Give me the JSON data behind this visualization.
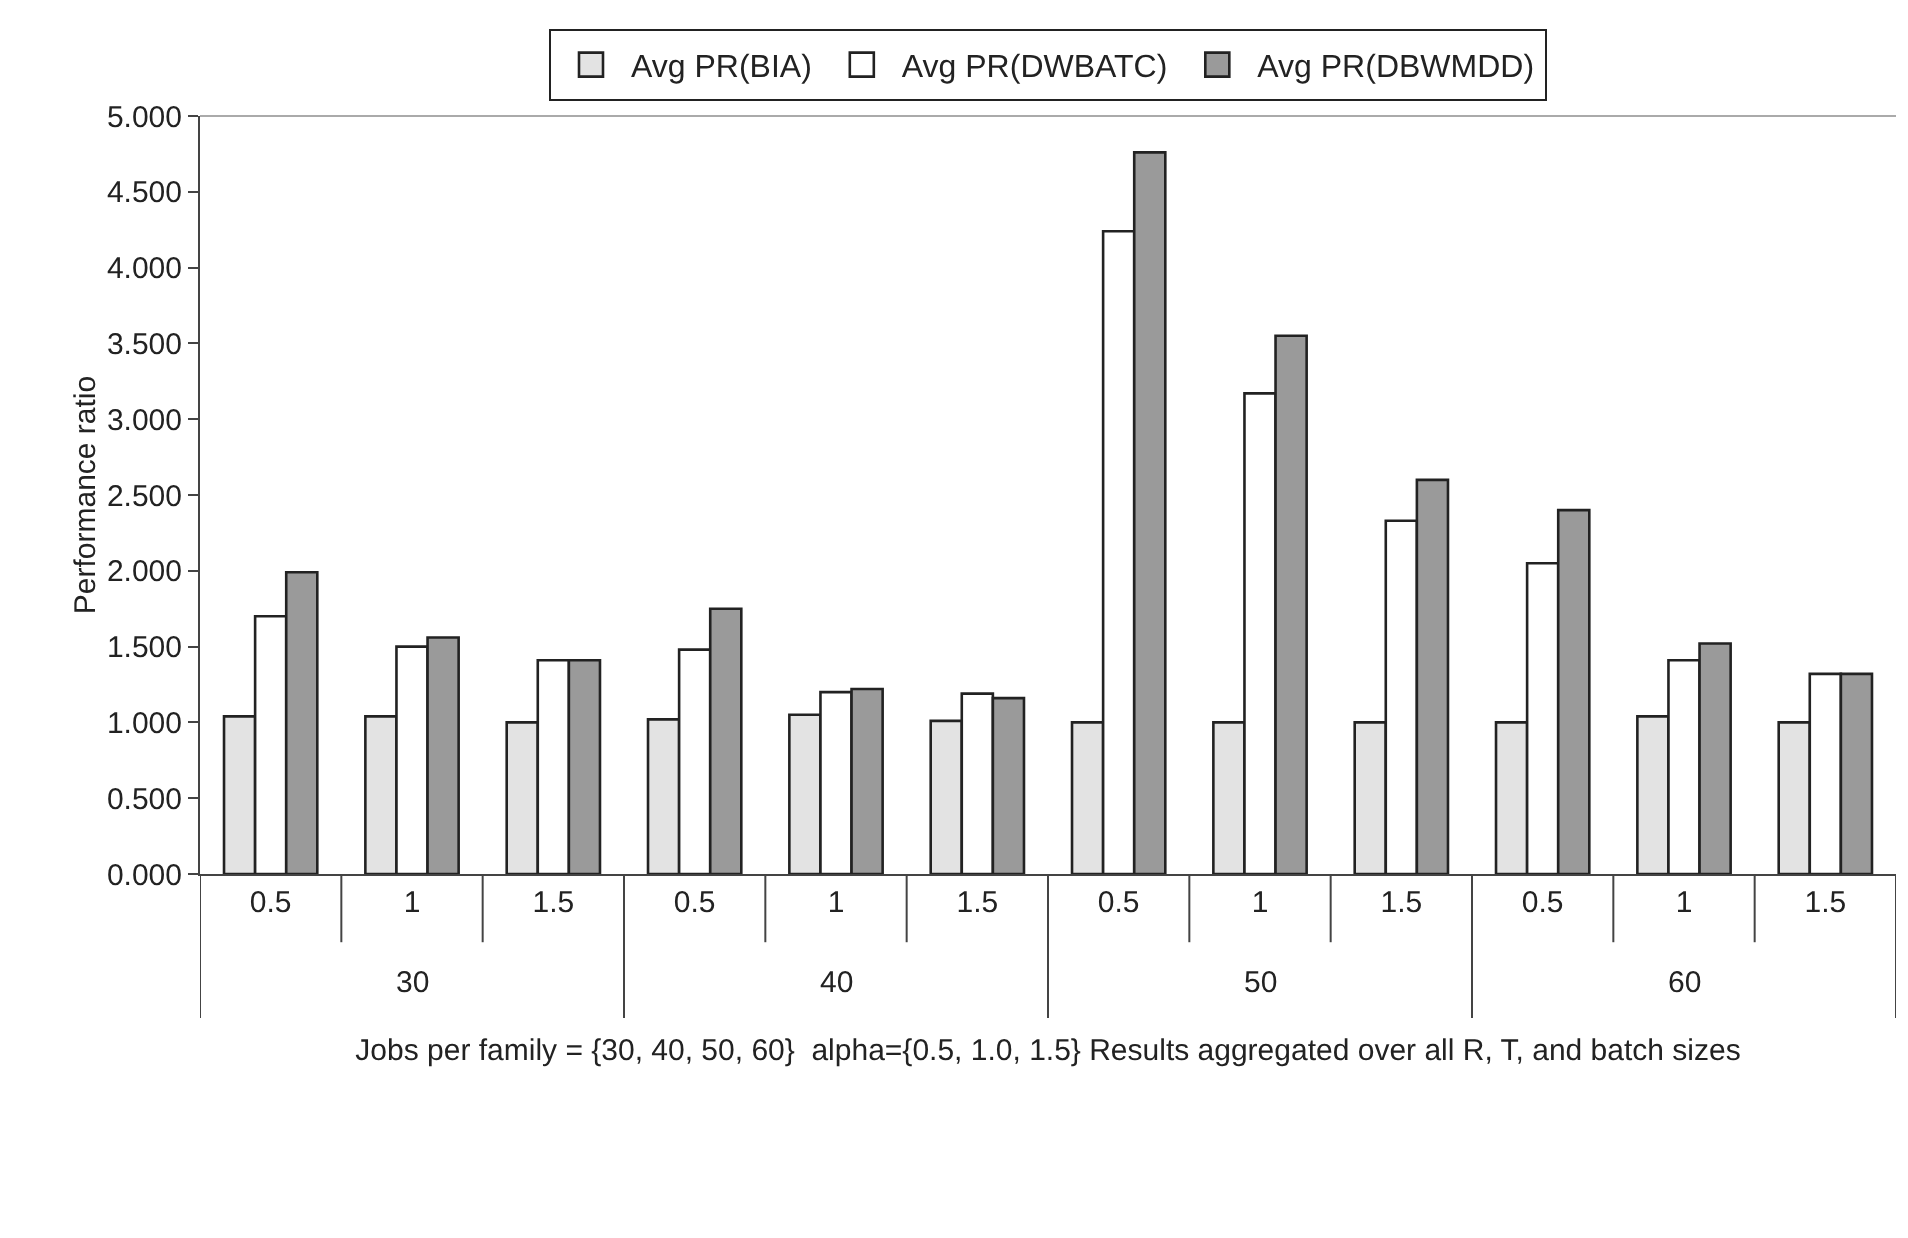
{
  "chart_data": {
    "type": "bar",
    "ylabel": "Performance ratio",
    "xlabel": "Jobs per family = {30, 40, 50, 60}  alpha={0.5, 1.0, 1.5} Results aggregated over all R, T, and batch sizes",
    "categories": [
      "0.5",
      "1",
      "1.5",
      "0.5",
      "1",
      "1.5",
      "0.5",
      "1",
      "1.5",
      "0.5",
      "1",
      "1.5"
    ],
    "annotations": [
      "30",
      "40",
      "50",
      "60"
    ],
    "series": [
      {
        "name": "Avg PR(BIA)",
        "color": "#e3e3e3",
        "values": [
          1.04,
          1.04,
          1.0,
          1.02,
          1.05,
          1.01,
          1.0,
          1.0,
          1.0,
          1.0,
          1.04,
          1.0
        ]
      },
      {
        "name": "Avg PR(DWBATC)",
        "color": "#ffffff",
        "values": [
          1.7,
          1.5,
          1.41,
          1.48,
          1.2,
          1.19,
          4.24,
          3.17,
          2.33,
          2.05,
          1.41,
          1.32
        ]
      },
      {
        "name": "Avg PR(DBWMDD)",
        "color": "#9a9a9a",
        "values": [
          1.99,
          1.56,
          1.41,
          1.75,
          1.22,
          1.16,
          4.76,
          3.55,
          2.6,
          2.4,
          1.52,
          1.32
        ]
      }
    ],
    "ylim": [
      0,
      5
    ],
    "yticks": [
      {
        "value": 0,
        "label": "0.000"
      },
      {
        "value": 0.5,
        "label": "0.500"
      },
      {
        "value": 1,
        "label": "1.000"
      },
      {
        "value": 1.5,
        "label": "1.500"
      },
      {
        "value": 2,
        "label": "2.000"
      },
      {
        "value": 2.5,
        "label": "2.500"
      },
      {
        "value": 3,
        "label": "3.000"
      },
      {
        "value": 3.5,
        "label": "3.500"
      },
      {
        "value": 4,
        "label": "4.000"
      },
      {
        "value": 4.5,
        "label": "4.500"
      },
      {
        "value": 5,
        "label": "5.000"
      }
    ],
    "grid": false,
    "legend": "top"
  }
}
